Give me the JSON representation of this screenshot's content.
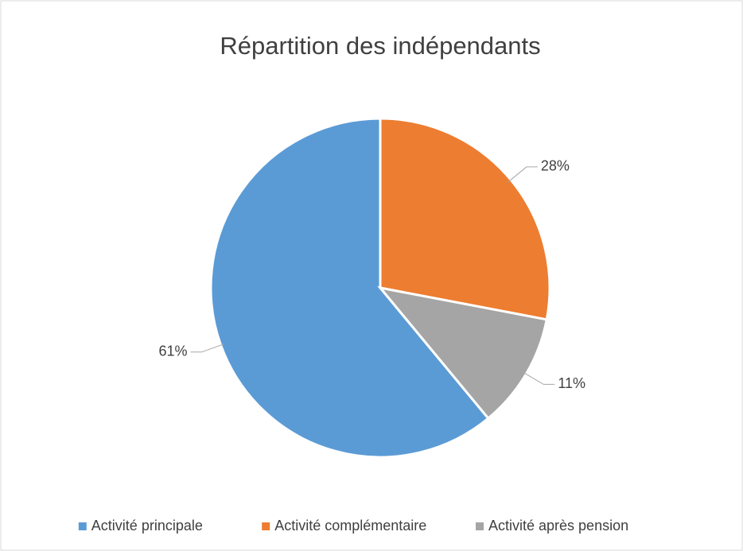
{
  "chart_data": {
    "type": "pie",
    "title": "Répartition des indépendants",
    "categories": [
      "Activité principale",
      "Activité complémentaire",
      "Activité après pension"
    ],
    "values": [
      61,
      28,
      11
    ],
    "value_labels": [
      "61%",
      "28%",
      "11%"
    ],
    "colors": [
      "#5b9bd5",
      "#ed7d31",
      "#a5a5a5"
    ],
    "start_angle": 140.4,
    "legend": "bottom"
  }
}
